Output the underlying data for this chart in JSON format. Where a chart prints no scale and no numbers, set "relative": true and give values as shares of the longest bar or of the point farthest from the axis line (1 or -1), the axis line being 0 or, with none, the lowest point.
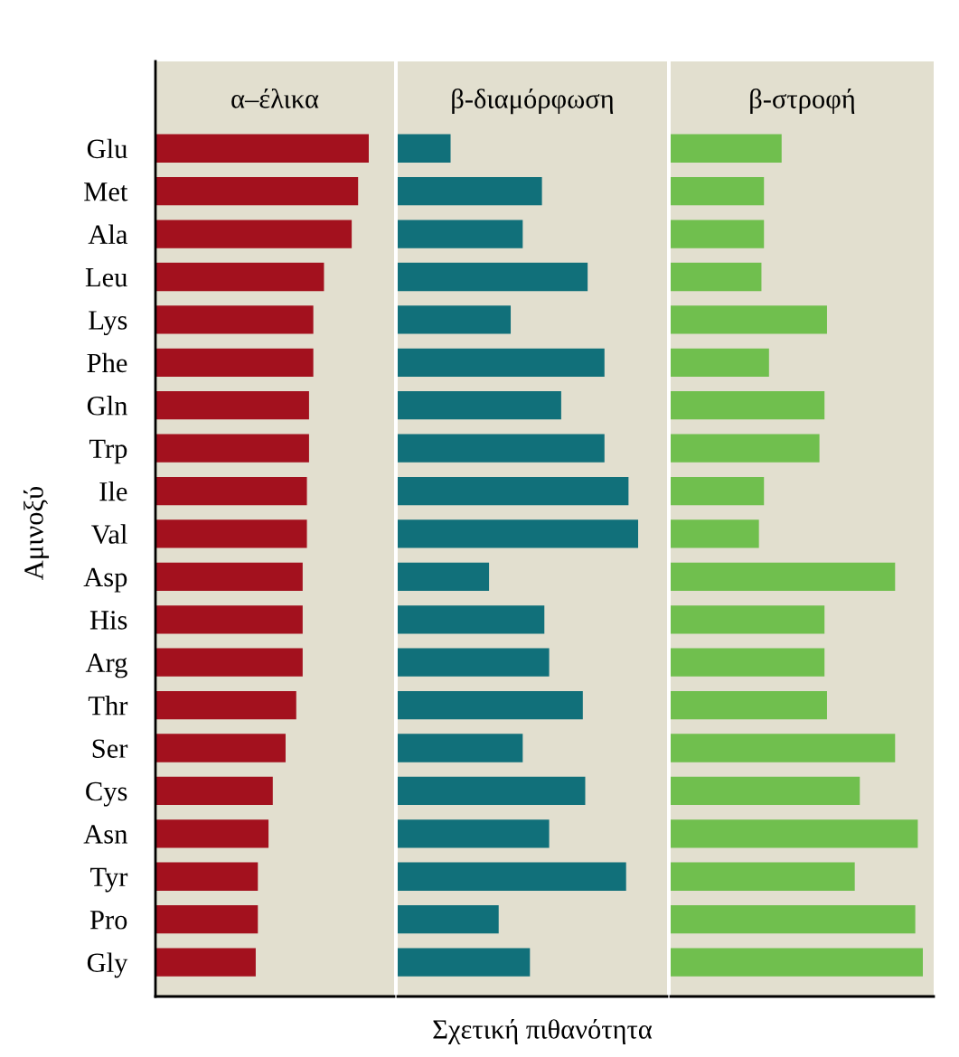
{
  "chart_data": [
    {
      "type": "bar",
      "orientation": "horizontal",
      "relative": true,
      "title": "α–έλικα",
      "ylabel": "Αμινοξύ",
      "tick_labels": "y",
      "color": "#a3111e",
      "categories": [
        "Glu",
        "Met",
        "Ala",
        "Leu",
        "Lys",
        "Phe",
        "Gln",
        "Trp",
        "Ile",
        "Val",
        "Asp",
        "His",
        "Arg",
        "Thr",
        "Ser",
        "Cys",
        "Asn",
        "Tyr",
        "Pro",
        "Gly"
      ],
      "values": [
        1,
        0.95,
        0.92,
        0.79,
        0.74,
        0.74,
        0.72,
        0.72,
        0.71,
        0.71,
        0.69,
        0.69,
        0.69,
        0.66,
        0.61,
        0.55,
        0.53,
        0.48,
        0.48,
        0.47
      ]
    },
    {
      "type": "bar",
      "orientation": "horizontal",
      "relative": true,
      "title": "β-διαμόρφωση",
      "xlabel": "Σχετική πιθανότητα",
      "tick_labels": false,
      "color": "#11707a",
      "categories": [
        null,
        null,
        null,
        null,
        null,
        null,
        null,
        null,
        null,
        null,
        null,
        null,
        null,
        null,
        null,
        null,
        null,
        null,
        null,
        null
      ],
      "values": [
        0.22,
        0.6,
        0.52,
        0.79,
        0.47,
        0.86,
        0.68,
        0.86,
        0.96,
        1,
        0.38,
        0.61,
        0.63,
        0.77,
        0.52,
        0.78,
        0.63,
        0.95,
        0.42,
        0.55
      ]
    },
    {
      "type": "bar",
      "orientation": "horizontal",
      "relative": true,
      "title": "β-στροφή",
      "tick_labels": false,
      "color": "#70bf4e",
      "categories": [
        null,
        null,
        null,
        null,
        null,
        null,
        null,
        null,
        null,
        null,
        null,
        null,
        null,
        null,
        null,
        null,
        null,
        null,
        null,
        null
      ],
      "values": [
        0.44,
        0.37,
        0.37,
        0.36,
        0.62,
        0.39,
        0.61,
        0.59,
        0.37,
        0.35,
        0.89,
        0.61,
        0.61,
        0.62,
        0.89,
        0.75,
        0.98,
        0.73,
        0.97,
        1
      ]
    }
  ]
}
